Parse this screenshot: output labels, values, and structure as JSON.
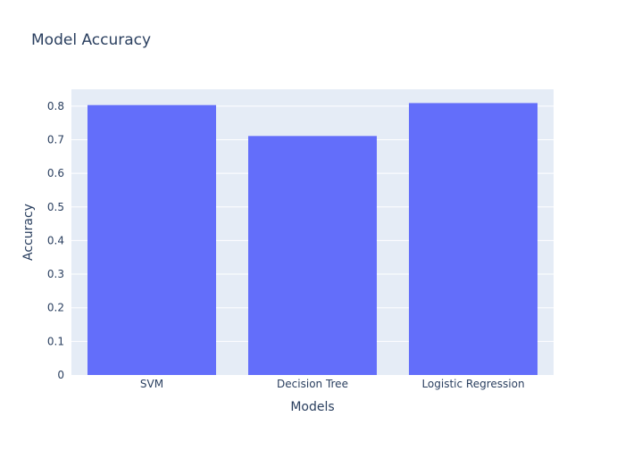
{
  "chart_data": {
    "type": "bar",
    "title": "Model Accuracy",
    "xlabel": "Models",
    "ylabel": "Accuracy",
    "categories": [
      "SVM",
      "Decision Tree",
      "Logistic Regression"
    ],
    "values": [
      0.803,
      0.711,
      0.809
    ],
    "ylim": [
      0,
      0.85
    ],
    "yticks": [
      0,
      0.1,
      0.2,
      0.3,
      0.4,
      0.5,
      0.6,
      0.7,
      0.8
    ],
    "ytick_labels": [
      "0",
      "0.1",
      "0.2",
      "0.3",
      "0.4",
      "0.5",
      "0.6",
      "0.7",
      "0.8"
    ],
    "grid": true,
    "colors": {
      "bar": "#636efa",
      "plot_bg": "#e5ecf6",
      "grid": "#ffffff",
      "text": "#2a3f5f"
    }
  }
}
